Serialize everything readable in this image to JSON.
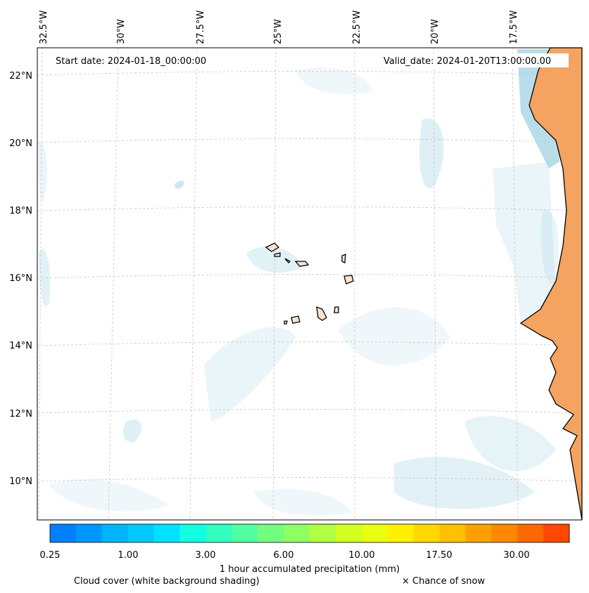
{
  "header": {
    "start_date": "Start date: 2024-01-18_00:00:00",
    "valid_date": "Valid_date: 2024-01-20T13:00:00.00"
  },
  "map": {
    "lon_labels": [
      "32.5°W",
      "30°W",
      "27.5°W",
      "25°W",
      "22.5°W",
      "20°W",
      "17.5°W"
    ],
    "lat_labels": [
      "22°N",
      "20°N",
      "18°N",
      "16°N",
      "14°N",
      "12°N",
      "10°N"
    ],
    "land_color": "#f4a460",
    "ocean_color": "#ffffff",
    "cloud_color": "#add8e6"
  },
  "colorbar": {
    "colors": [
      "#0080ff",
      "#0096ff",
      "#00b4ff",
      "#00c8ff",
      "#00e0ff",
      "#10ffe0",
      "#30ffc0",
      "#50ffa0",
      "#70ff80",
      "#90ff60",
      "#b0ff40",
      "#d0ff20",
      "#e8ff10",
      "#fff000",
      "#ffd800",
      "#ffc000",
      "#ffa000",
      "#ff8800",
      "#ff6800",
      "#ff4800"
    ],
    "tick_labels": [
      "0.25",
      "1.00",
      "3.00",
      "6.00",
      "10.00",
      "17.50",
      "30.00"
    ],
    "title": "1 hour accumulated precipitation (mm)"
  },
  "legend": {
    "cloud": "Cloud cover (white background shading)",
    "snow": "× Chance of snow"
  }
}
